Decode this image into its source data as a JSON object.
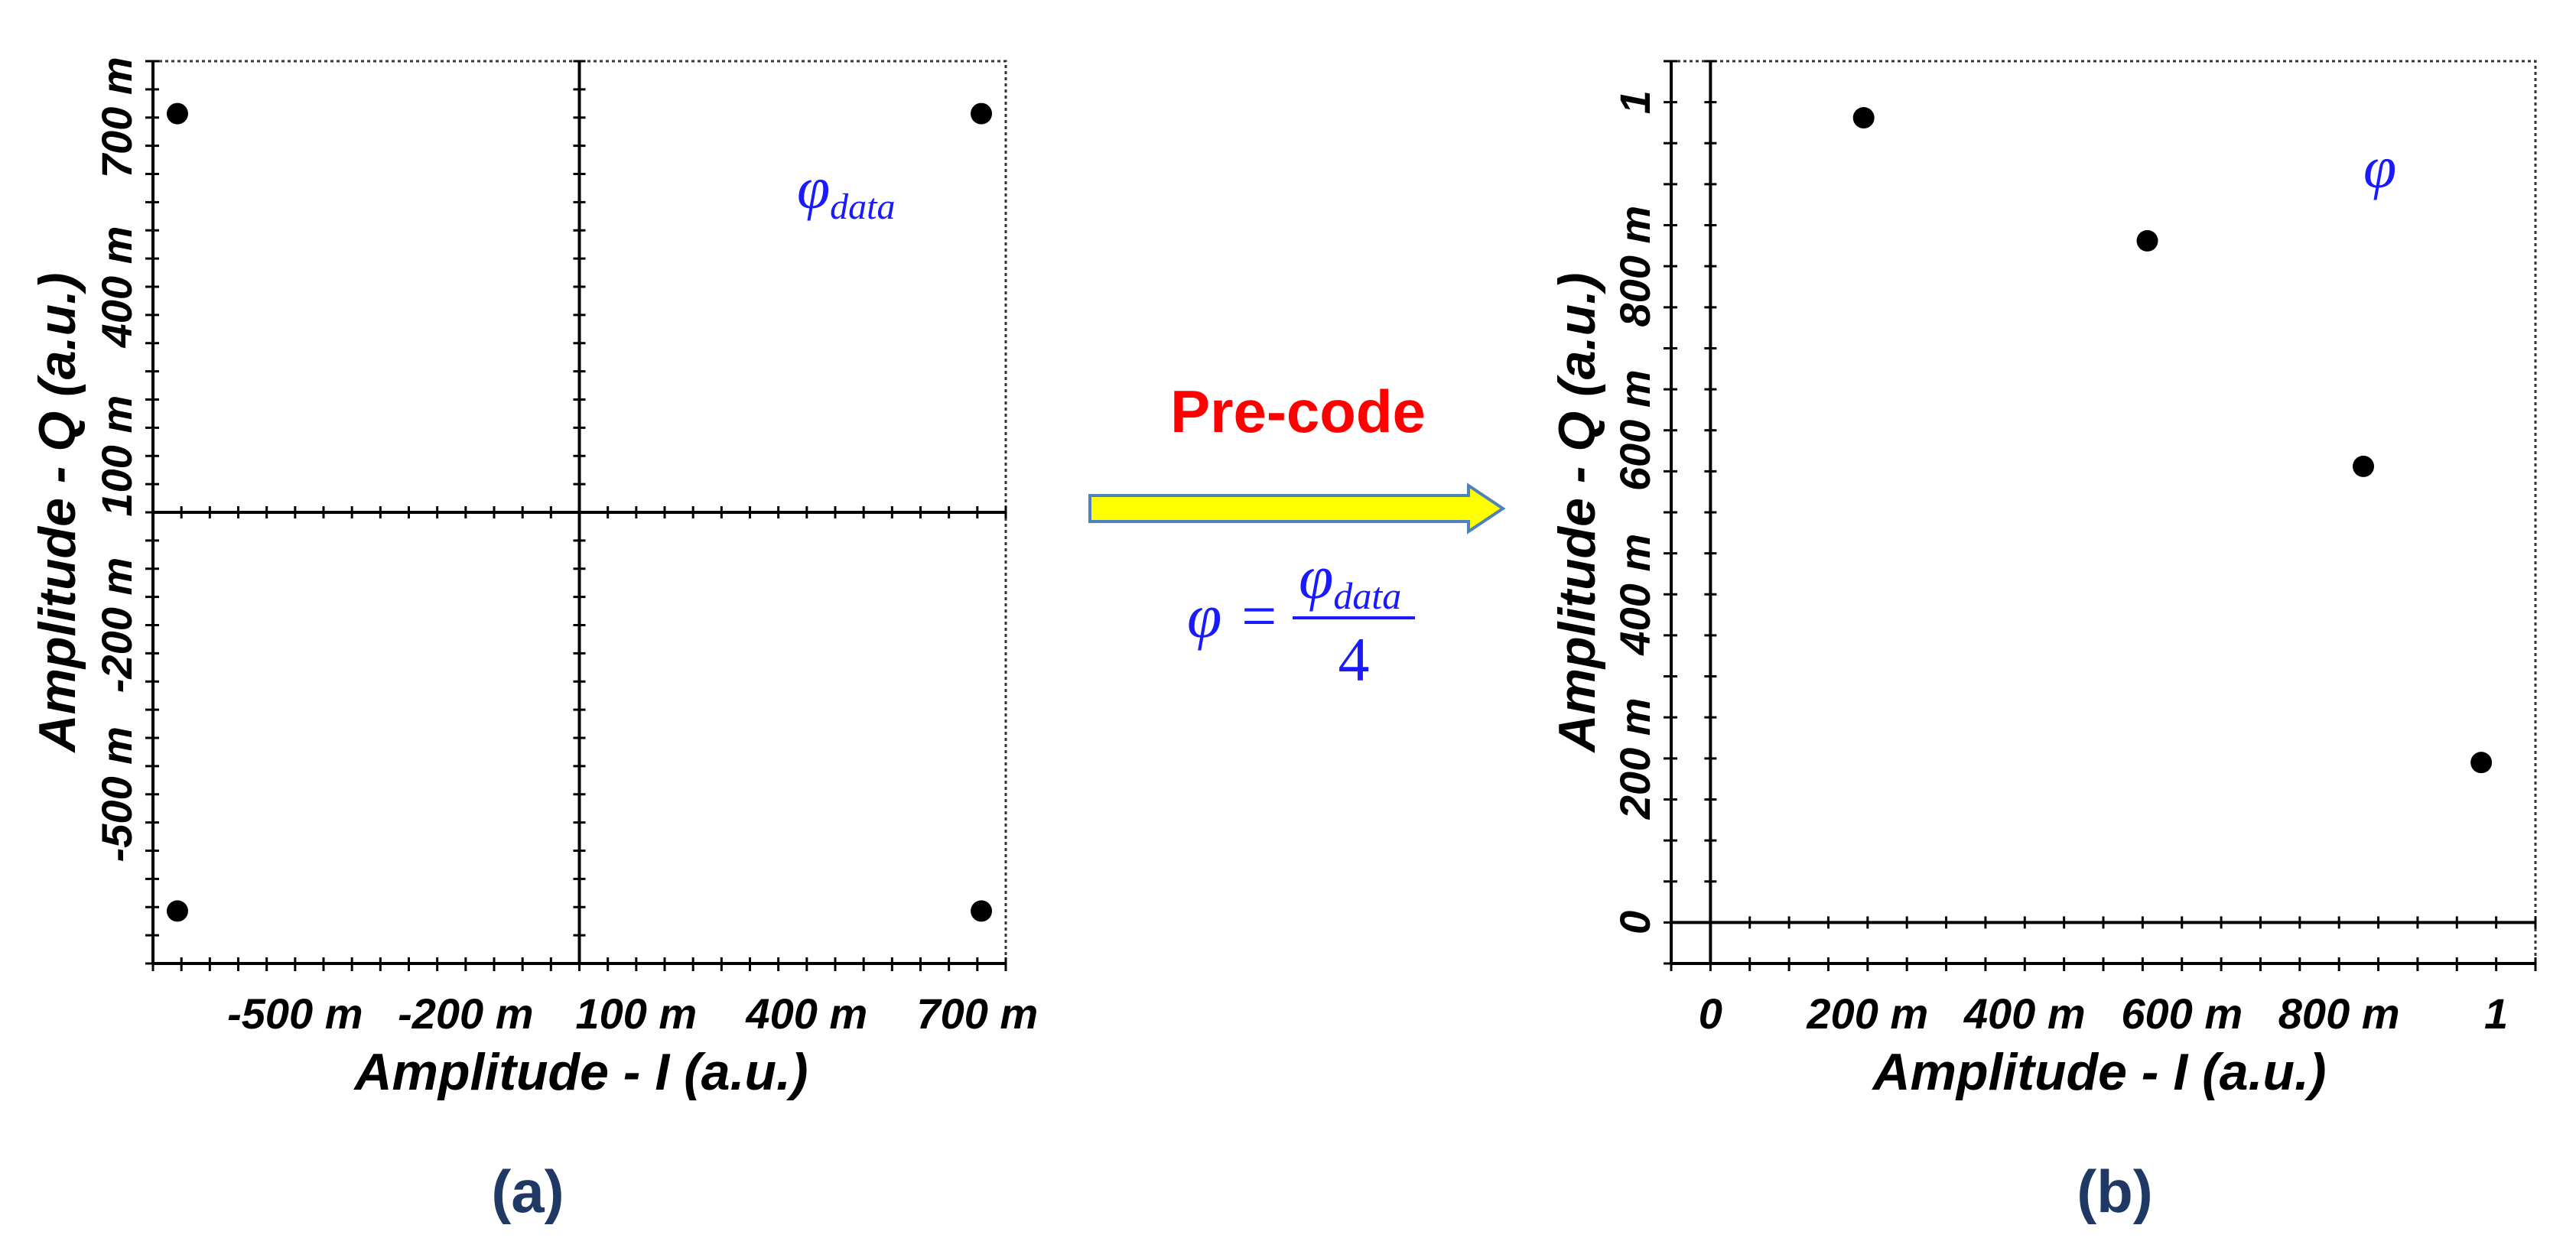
{
  "chart_data": [
    {
      "type": "scatter",
      "panel_label": "(a)",
      "title": "",
      "xlabel": "Amplitude - I (a.u.)",
      "ylabel": "Amplitude - Q (a.u.)",
      "xlim": [
        -0.75,
        0.75
      ],
      "ylim": [
        -0.8,
        0.8
      ],
      "x_ticks": [
        -0.5,
        -0.2,
        0.1,
        0.4,
        0.7
      ],
      "x_tick_labels": [
        "-500 m",
        "-200 m",
        "100 m",
        "400 m",
        "700 m"
      ],
      "y_ticks": [
        -0.5,
        -0.2,
        0.1,
        0.4,
        0.7
      ],
      "y_tick_labels": [
        "-500 m",
        "-200 m",
        "100 m",
        "400 m",
        "700 m"
      ],
      "points": [
        {
          "x": -0.707,
          "y": 0.707
        },
        {
          "x": 0.707,
          "y": 0.707
        },
        {
          "x": -0.707,
          "y": -0.707
        },
        {
          "x": 0.707,
          "y": -0.707
        }
      ],
      "annotation": {
        "symbol": "φ",
        "subscript": "data"
      }
    },
    {
      "type": "scatter",
      "panel_label": "(b)",
      "title": "",
      "xlabel": "Amplitude - I (a.u.)",
      "ylabel": "Amplitude - Q (a.u.)",
      "xlim": [
        -0.05,
        1.05
      ],
      "ylim": [
        -0.05,
        1.05
      ],
      "x_ticks": [
        0,
        0.2,
        0.4,
        0.6,
        0.8,
        1.0
      ],
      "x_tick_labels": [
        "0",
        "200 m",
        "400 m",
        "600 m",
        "800 m",
        "1"
      ],
      "y_ticks": [
        0,
        0.2,
        0.4,
        0.6,
        0.8,
        1.0
      ],
      "y_tick_labels": [
        "0",
        "200 m",
        "400 m",
        "600 m",
        "800 m",
        "1"
      ],
      "points": [
        {
          "x": 0.195,
          "y": 0.981
        },
        {
          "x": 0.556,
          "y": 0.831
        },
        {
          "x": 0.831,
          "y": 0.556
        },
        {
          "x": 0.981,
          "y": 0.195
        }
      ],
      "annotation": {
        "symbol": "φ"
      }
    }
  ],
  "transform": {
    "label": "Pre-code",
    "formula_lhs": "φ =",
    "formula_numerator_symbol": "φ",
    "formula_numerator_subscript": "data",
    "formula_denominator": "4"
  },
  "colors": {
    "arrow_fill": "#ffff00",
    "arrow_stroke": "#4f81bd",
    "precode_text": "#ff0000",
    "formula_text": "#1a1aff",
    "panel_label": "#1f3864",
    "points": "#000000"
  }
}
